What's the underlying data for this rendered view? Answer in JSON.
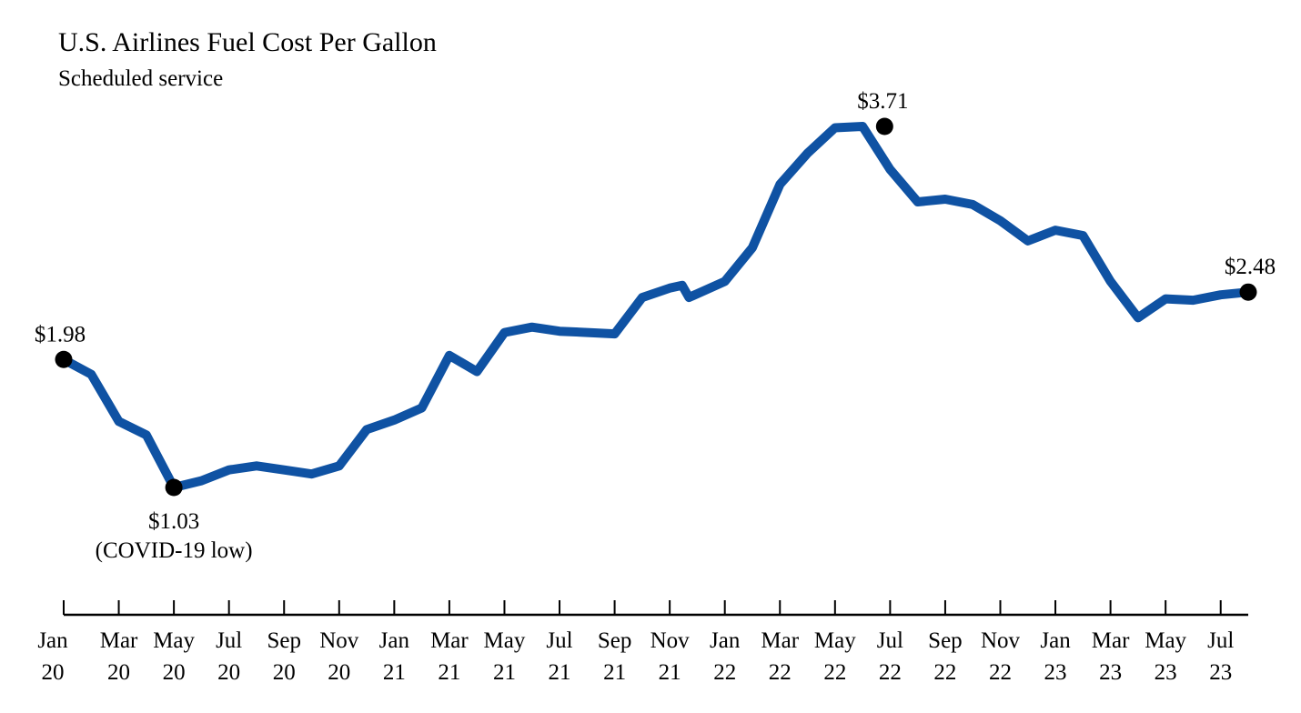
{
  "chart_data": {
    "type": "line",
    "title": "U.S. Airlines Fuel Cost Per Gallon",
    "subtitle": "Scheduled service",
    "xlabel": "",
    "ylabel": "",
    "ylim": [
      0.5,
      4.0
    ],
    "grid": false,
    "series": [
      {
        "name": "Fuel cost per gallon",
        "color": "#0f52a3",
        "x": [
          "Jan 20",
          "Feb 20",
          "Mar 20",
          "Apr 20",
          "May 20",
          "Jun 20",
          "Jul 20",
          "Aug 20",
          "Sep 20",
          "Oct 20",
          "Nov 20",
          "Dec 20",
          "Jan 21",
          "Feb 21",
          "Mar 21",
          "Apr 21",
          "May 21",
          "Jun 21",
          "Jul 21",
          "Aug 21",
          "Sep 21",
          "Oct 21",
          "Nov 21",
          "Nov 21b",
          "Dec 21",
          "Jan 22",
          "Feb 22",
          "Mar 22",
          "Apr 22",
          "May 22",
          "Jun 22",
          "Jul 22",
          "Aug 22",
          "Sep 22",
          "Oct 22",
          "Nov 22",
          "Dec 22",
          "Jan 23",
          "Feb 23",
          "Mar 23",
          "Apr 23",
          "May 23",
          "Jun 23",
          "Jul 23",
          "Aug 23"
        ],
        "t": [
          0,
          1,
          2,
          3,
          4,
          5,
          6,
          7,
          8,
          9,
          10,
          11,
          12,
          13,
          14,
          15,
          16,
          17,
          18,
          19,
          20,
          21,
          22,
          22.45,
          22.7,
          24,
          25,
          26,
          27,
          28,
          29,
          30,
          31,
          32,
          33,
          34,
          35,
          36,
          37,
          38,
          39,
          40,
          41,
          42,
          43
        ],
        "values": [
          1.98,
          1.87,
          1.52,
          1.42,
          1.03,
          1.08,
          1.16,
          1.19,
          1.16,
          1.13,
          1.19,
          1.46,
          1.53,
          1.62,
          2.01,
          1.89,
          2.18,
          2.22,
          2.19,
          2.18,
          2.17,
          2.44,
          2.51,
          2.53,
          2.44,
          2.56,
          2.81,
          3.28,
          3.51,
          3.7,
          3.71,
          3.39,
          3.15,
          3.17,
          3.13,
          3.01,
          2.86,
          2.94,
          2.9,
          2.56,
          2.29,
          2.43,
          2.42,
          2.46,
          2.48
        ]
      }
    ],
    "annotations": [
      {
        "t": 0,
        "value": 1.98,
        "label": "$1.98",
        "note": ""
      },
      {
        "t": 4,
        "value": 1.03,
        "label": "$1.03",
        "note": "(COVID-19 low)"
      },
      {
        "t": 29.8,
        "value": 3.71,
        "label": "$3.71",
        "note": ""
      },
      {
        "t": 43,
        "value": 2.48,
        "label": "$2.48",
        "note": ""
      }
    ],
    "x_ticks": [
      {
        "t": 0,
        "month": "Jan",
        "year": "20"
      },
      {
        "t": 2,
        "month": "Mar",
        "year": "20"
      },
      {
        "t": 4,
        "month": "May",
        "year": "20"
      },
      {
        "t": 6,
        "month": "Jul",
        "year": "20"
      },
      {
        "t": 8,
        "month": "Sep",
        "year": "20"
      },
      {
        "t": 10,
        "month": "Nov",
        "year": "20"
      },
      {
        "t": 12,
        "month": "Jan",
        "year": "21"
      },
      {
        "t": 14,
        "month": "Mar",
        "year": "21"
      },
      {
        "t": 16,
        "month": "May",
        "year": "21"
      },
      {
        "t": 18,
        "month": "Jul",
        "year": "21"
      },
      {
        "t": 20,
        "month": "Sep",
        "year": "21"
      },
      {
        "t": 22,
        "month": "Nov",
        "year": "21"
      },
      {
        "t": 24,
        "month": "Jan",
        "year": "22"
      },
      {
        "t": 26,
        "month": "Mar",
        "year": "22"
      },
      {
        "t": 28,
        "month": "May",
        "year": "22"
      },
      {
        "t": 30,
        "month": "Jul",
        "year": "22"
      },
      {
        "t": 32,
        "month": "Sep",
        "year": "22"
      },
      {
        "t": 34,
        "month": "Nov",
        "year": "22"
      },
      {
        "t": 36,
        "month": "Jan",
        "year": "23"
      },
      {
        "t": 38,
        "month": "Mar",
        "year": "23"
      },
      {
        "t": 40,
        "month": "May",
        "year": "23"
      },
      {
        "t": 42,
        "month": "Jul",
        "year": "23"
      }
    ]
  }
}
